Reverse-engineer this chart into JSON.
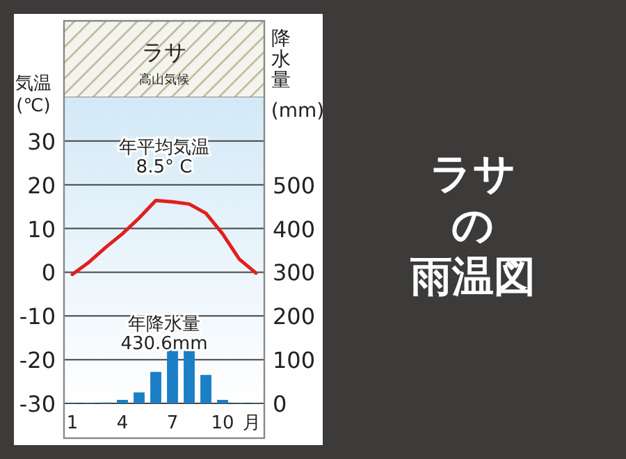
{
  "chart_data": {
    "type": "line",
    "title": "ラサ",
    "subtitle": "高山気候",
    "ylabel": "気温 (℃)",
    "y2label": "降水量 (mm)",
    "xlabel": "月",
    "x": [
      1,
      2,
      3,
      4,
      5,
      6,
      7,
      8,
      9,
      10,
      11,
      12
    ],
    "xlim": [
      0.5,
      12.5
    ],
    "xticks": [
      1,
      4,
      7,
      10
    ],
    "ylim": [
      -30,
      40
    ],
    "yticks": [
      -30,
      -20,
      -10,
      0,
      10,
      20,
      30
    ],
    "y2lim": [
      0,
      700
    ],
    "y2ticks": [
      0,
      100,
      200,
      300,
      400,
      500
    ],
    "grid": "y",
    "series": [
      {
        "type": "bar",
        "axis": "y2",
        "color": "#1b7fc6",
        "values": [
          1,
          1,
          2,
          8,
          25,
          72,
          121,
          122,
          65,
          8,
          1,
          1
        ]
      },
      {
        "color": "#e0201e",
        "values": [
          -0.5,
          2.3,
          5.7,
          8.8,
          12.4,
          16.4,
          16.1,
          15.6,
          13.5,
          8.8,
          3.0,
          -0.2
        ]
      }
    ],
    "annotations": [
      "年平均気温\n8.5° C",
      "年降水量\n430.6mm",
      "ラサ",
      "の",
      "雨温図"
    ]
  }
}
